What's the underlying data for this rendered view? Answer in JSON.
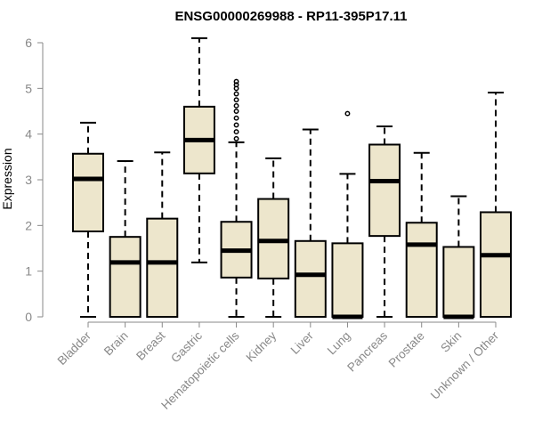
{
  "chart_data": {
    "type": "boxplot",
    "title": "ENSG00000269988 - RP11-395P17.11",
    "xlabel": "",
    "ylabel": "Expression",
    "ylim": [
      0,
      6
    ],
    "yticks": [
      "0",
      "1",
      "2",
      "3",
      "4",
      "5",
      "6"
    ],
    "categories": [
      "Bladder",
      "Brain",
      "Breast",
      "Gastric",
      "Hematopoietic cells",
      "Kidney",
      "Liver",
      "Lung",
      "Pancreas",
      "Prostate",
      "Skin",
      "Unknown / Other"
    ],
    "boxes": [
      {
        "category": "Bladder",
        "whisker_low": 0,
        "q1": 1.87,
        "median": 3.02,
        "q3": 3.57,
        "whisker_high": 4.25,
        "outliers": []
      },
      {
        "category": "Brain",
        "whisker_low": 0,
        "q1": 0,
        "median": 1.19,
        "q3": 1.75,
        "whisker_high": 3.41,
        "outliers": []
      },
      {
        "category": "Breast",
        "whisker_low": 0,
        "q1": 0,
        "median": 1.19,
        "q3": 2.15,
        "whisker_high": 3.6,
        "outliers": []
      },
      {
        "category": "Gastric",
        "whisker_low": 1.19,
        "q1": 3.14,
        "median": 3.87,
        "q3": 4.6,
        "whisker_high": 6.1,
        "outliers": []
      },
      {
        "category": "Hematopoietic cells",
        "whisker_low": 0,
        "q1": 0.86,
        "median": 1.45,
        "q3": 2.08,
        "whisker_high": 3.82,
        "outliers": [
          3.9,
          4.05,
          4.2,
          4.35,
          4.5,
          4.62,
          4.75,
          4.88,
          5.0,
          5.08,
          5.15
        ]
      },
      {
        "category": "Kidney",
        "whisker_low": 0,
        "q1": 0.84,
        "median": 1.66,
        "q3": 2.58,
        "whisker_high": 3.47,
        "outliers": []
      },
      {
        "category": "Liver",
        "whisker_low": 0,
        "q1": 0,
        "median": 0.92,
        "q3": 1.66,
        "whisker_high": 4.1,
        "outliers": []
      },
      {
        "category": "Lung",
        "whisker_low": 0,
        "q1": 0,
        "median": 0,
        "q3": 1.61,
        "whisker_high": 3.13,
        "outliers": [
          4.45
        ]
      },
      {
        "category": "Pancreas",
        "whisker_low": 0,
        "q1": 1.77,
        "median": 2.97,
        "q3": 3.77,
        "whisker_high": 4.17,
        "outliers": []
      },
      {
        "category": "Prostate",
        "whisker_low": 0,
        "q1": 0,
        "median": 1.58,
        "q3": 2.06,
        "whisker_high": 3.59,
        "outliers": []
      },
      {
        "category": "Skin",
        "whisker_low": 0,
        "q1": 0,
        "median": 0,
        "q3": 1.53,
        "whisker_high": 2.64,
        "outliers": []
      },
      {
        "category": "Unknown / Other",
        "whisker_low": 0,
        "q1": 0,
        "median": 1.35,
        "q3": 2.29,
        "whisker_high": 4.91,
        "outliers": []
      }
    ],
    "colors": {
      "box_fill": "#ede6cc",
      "box_stroke": "#000000",
      "median": "#000000",
      "axis": "#888888",
      "tick_label": "#888888"
    }
  }
}
